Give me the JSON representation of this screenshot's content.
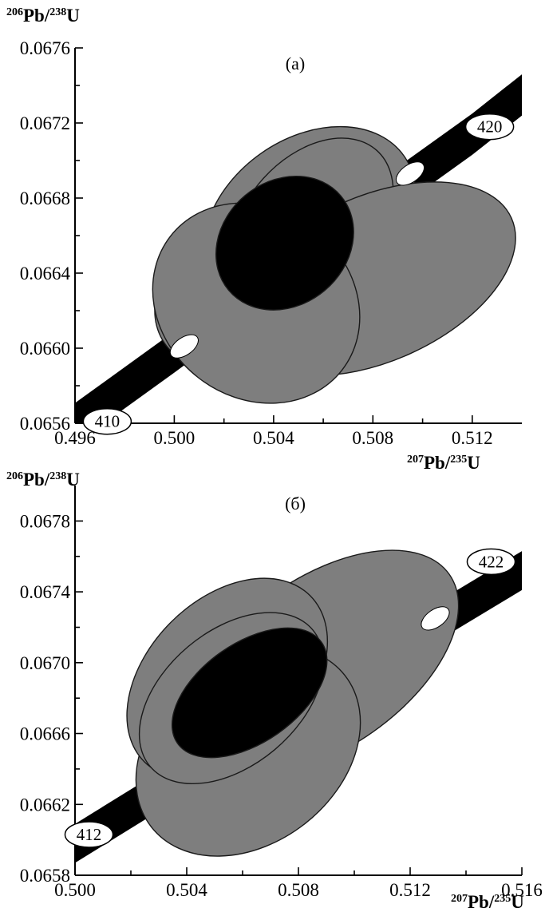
{
  "chart_data": [
    {
      "type": "scatter",
      "panel_label": "(a)",
      "x_axis": {
        "label": "Pb/U",
        "label_num_sup": "207",
        "label_den_sup": "235",
        "ticks": [
          0.496,
          0.5,
          0.504,
          0.508,
          0.512
        ],
        "tick_labels": [
          "0.496",
          "0.500",
          "0.504",
          "0.508",
          "0.512"
        ],
        "range": [
          0.496,
          0.514
        ]
      },
      "y_axis": {
        "label": "Pb/U",
        "label_num_sup": "206",
        "label_den_sup": "238",
        "ticks": [
          0.0656,
          0.066,
          0.0664,
          0.0668,
          0.0672,
          0.0676
        ],
        "tick_labels": [
          "0.0656",
          "0.0660",
          "0.0664",
          "0.0668",
          "0.0672",
          "0.0676"
        ],
        "range": [
          0.0656,
          0.0676
        ]
      },
      "concordia": {
        "points": [
          [
            0.4955,
            0.06555
          ],
          [
            0.5,
            0.06598
          ],
          [
            0.504,
            0.06637
          ],
          [
            0.508,
            0.06676
          ],
          [
            0.512,
            0.06714
          ],
          [
            0.5142,
            0.06737
          ]
        ],
        "band_half_width": 0.00011,
        "age_labels": [
          {
            "text": "410",
            "x": 0.4973,
            "y": 0.06561
          },
          {
            "text": "420",
            "x": 0.5127,
            "y": 0.06718
          }
        ],
        "age_markers": [
          {
            "x": 0.5004,
            "y": 0.06601
          },
          {
            "x": 0.5095,
            "y": 0.06693
          }
        ]
      },
      "error_ellipses": [
        {
          "cx": 0.50545,
          "cy": 0.06667,
          "rx": 0.00465,
          "ry": 0.00045,
          "rot": 35
        },
        {
          "cx": 0.50555,
          "cy": 0.06667,
          "rx": 0.0039,
          "ry": 0.00035,
          "rot": 48
        },
        {
          "cx": 0.5035,
          "cy": 0.06635,
          "rx": 0.0046,
          "ry": 0.00042,
          "rot": 30
        },
        {
          "cx": 0.5081,
          "cy": 0.06637,
          "rx": 0.006,
          "ry": 0.00044,
          "rot": 24
        },
        {
          "cx": 0.5033,
          "cy": 0.06624,
          "rx": 0.0038,
          "ry": 0.00058,
          "rot": 52
        }
      ],
      "mean_ellipse": {
        "cx": 0.50445,
        "cy": 0.06656,
        "rx": 0.00295,
        "ry": 0.00033,
        "rot": 40
      }
    },
    {
      "type": "scatter",
      "panel_label": "(б)",
      "x_axis": {
        "label": "Pb/U",
        "label_num_sup": "207",
        "label_den_sup": "235",
        "ticks": [
          0.5,
          0.504,
          0.508,
          0.512,
          0.516
        ],
        "tick_labels": [
          "0.500",
          "0.504",
          "0.508",
          "0.512",
          "0.516"
        ],
        "range": [
          0.5,
          0.516
        ]
      },
      "y_axis": {
        "label": "Pb/U",
        "label_num_sup": "206",
        "label_den_sup": "238",
        "ticks": [
          0.0658,
          0.0662,
          0.0666,
          0.067,
          0.0674,
          0.0678
        ],
        "tick_labels": [
          "0.0658",
          "0.0662",
          "0.0666",
          "0.0670",
          "0.0674",
          "0.0678"
        ],
        "range": [
          0.0658,
          0.068
        ]
      },
      "concordia": {
        "points": [
          [
            0.5,
            0.06598
          ],
          [
            0.504,
            0.06637
          ],
          [
            0.508,
            0.06676
          ],
          [
            0.512,
            0.06714
          ],
          [
            0.516,
            0.06752
          ]
        ],
        "band_half_width": 0.00011,
        "age_labels": [
          {
            "text": "412",
            "x": 0.5005,
            "y": 0.06603
          },
          {
            "text": "422",
            "x": 0.5149,
            "y": 0.06757
          }
        ],
        "age_markers": [
          {
            "x": 0.5129,
            "y": 0.06725
          }
        ]
      },
      "error_ellipses": [
        {
          "cx": 0.5089,
          "cy": 0.067,
          "rx": 0.0055,
          "ry": 0.00048,
          "rot": 35
        },
        {
          "cx": 0.5062,
          "cy": 0.0665,
          "rx": 0.0044,
          "ry": 0.00052,
          "rot": 38
        },
        {
          "cx": 0.50545,
          "cy": 0.06691,
          "rx": 0.0042,
          "ry": 0.00045,
          "rot": 45
        },
        {
          "cx": 0.5056,
          "cy": 0.0668,
          "rx": 0.0038,
          "ry": 0.00038,
          "rot": 40
        }
      ],
      "mean_ellipse": {
        "cx": 0.50625,
        "cy": 0.06683,
        "rx": 0.00315,
        "ry": 0.00028,
        "rot": 35
      }
    }
  ],
  "colors": {
    "ellipse_fill": "#7e7e7e",
    "ellipse_stroke": "#1a1a1a",
    "mean_fill": "#000000",
    "band": "#000000",
    "age_label_bg": "#ffffff"
  }
}
